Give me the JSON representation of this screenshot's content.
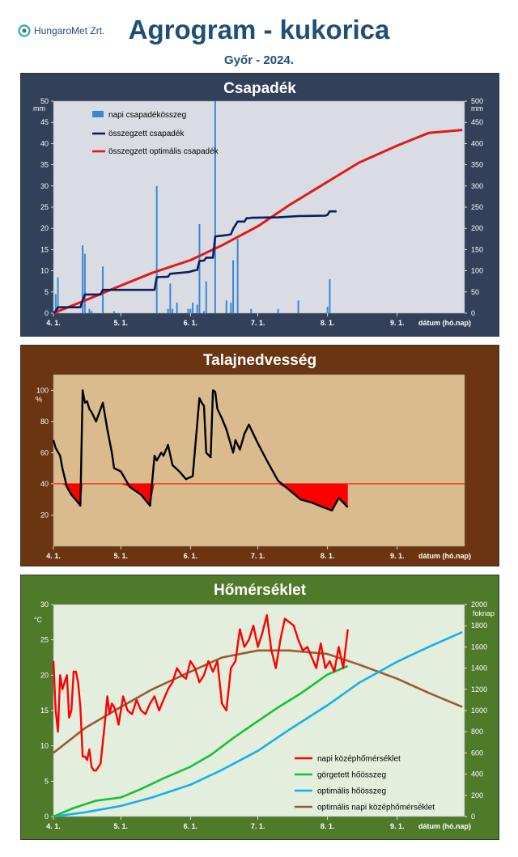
{
  "header": {
    "logo_text": "HungaroMet Zrt.",
    "title": "Agrogram - kukorica",
    "subtitle": "Győr - 2024."
  },
  "chart_data": [
    {
      "type": "bar+line",
      "title": "Csapadék",
      "left_unit": "mm",
      "right_unit": "mm",
      "x_date_labels": [
        "4. 1.",
        "5. 1.",
        "6. 1.",
        "7. 1.",
        "8. 1.",
        "9. 1."
      ],
      "xlabel": "dátum (hó.nap)",
      "ylim_left": [
        0,
        50
      ],
      "yticks_left": [
        0,
        5,
        10,
        15,
        20,
        25,
        30,
        35,
        40,
        45,
        50
      ],
      "ylim_right": [
        0,
        500
      ],
      "yticks_right": [
        0,
        50,
        100,
        150,
        200,
        250,
        300,
        350,
        400,
        450,
        500
      ],
      "legend": [
        "napi csapadékösszeg",
        "összegzett csapadék",
        "összegzett optimális csapadék"
      ],
      "series": [
        {
          "name": "napi csapadékösszeg",
          "kind": "bar",
          "axis": "left",
          "color": "#3b87d6",
          "x": [
            "04-02",
            "04-03",
            "04-14",
            "04-15",
            "04-17",
            "04-18",
            "04-23",
            "04-28",
            "05-17",
            "05-22",
            "05-23",
            "05-24",
            "05-26",
            "05-31",
            "06-01",
            "06-02",
            "06-04",
            "06-05",
            "06-07",
            "06-08",
            "06-12",
            "06-17",
            "06-19",
            "06-20",
            "06-22",
            "06-28",
            "07-10",
            "07-19",
            "08-01",
            "08-02"
          ],
          "values": [
            4.5,
            8.5,
            16,
            14,
            1,
            0.5,
            11,
            0.5,
            30,
            1,
            7,
            1,
            2.5,
            1,
            1,
            2.5,
            2,
            21,
            0.5,
            7.5,
            50,
            3,
            2.5,
            12.5,
            17.5,
            1,
            1,
            3,
            1.5,
            8
          ]
        },
        {
          "name": "összegzett csapadék",
          "kind": "line",
          "axis": "right",
          "color": "#0d1e5a",
          "x": [
            "04-01",
            "04-02",
            "04-03",
            "04-13",
            "04-14",
            "04-15",
            "04-22",
            "04-23",
            "05-16",
            "05-17",
            "05-22",
            "05-23",
            "05-31",
            "06-01",
            "06-02",
            "06-04",
            "06-05",
            "06-07",
            "06-08",
            "06-11",
            "06-12",
            "06-17",
            "06-19",
            "06-20",
            "06-22",
            "06-25",
            "06-26",
            "06-27",
            "06-28",
            "07-10",
            "07-19",
            "07-31",
            "08-01",
            "08-02",
            "08-05"
          ],
          "values": [
            0,
            5,
            14,
            14,
            30,
            44,
            44,
            55,
            55,
            85,
            86,
            93,
            97,
            98,
            100,
            102,
            123,
            124,
            131,
            131,
            181,
            184,
            186,
            199,
            216,
            216,
            224,
            224,
            225,
            226,
            229,
            230,
            232,
            240,
            240
          ]
        },
        {
          "name": "összegzett optimális csapadék",
          "kind": "line",
          "axis": "right",
          "color": "#e01a1a",
          "x": [
            "04-01",
            "04-15",
            "05-01",
            "05-15",
            "06-01",
            "06-15",
            "07-01",
            "07-15",
            "08-01",
            "08-15",
            "09-01",
            "09-15",
            "09-30"
          ],
          "values": [
            0,
            30,
            65,
            95,
            125,
            160,
            205,
            255,
            310,
            355,
            395,
            425,
            432
          ]
        }
      ]
    },
    {
      "type": "line",
      "title": "Talajnedvesség",
      "unit": "%",
      "x_date_labels": [
        "4. 1.",
        "5. 1.",
        "6. 1.",
        "7. 1.",
        "8. 1.",
        "9. 1."
      ],
      "xlabel": "dátum (hó.nap)",
      "ylim": [
        0,
        110
      ],
      "yticks": [
        20,
        40,
        60,
        80,
        100
      ],
      "threshold": 40,
      "series": [
        {
          "name": "talajnedvesség",
          "color": "#000000",
          "x": [
            "04-01",
            "04-02",
            "04-04",
            "04-05",
            "04-07",
            "04-09",
            "04-12",
            "04-13",
            "04-14",
            "04-15",
            "04-16",
            "04-17",
            "04-18",
            "04-20",
            "04-23",
            "04-25",
            "04-27",
            "04-28",
            "05-01",
            "05-05",
            "05-10",
            "05-14",
            "05-16",
            "05-17",
            "05-19",
            "05-20",
            "05-22",
            "05-24",
            "05-27",
            "05-30",
            "06-02",
            "06-05",
            "06-06",
            "06-07",
            "06-08",
            "06-10",
            "06-11",
            "06-12",
            "06-13",
            "06-15",
            "06-17",
            "06-18",
            "06-20",
            "06-21",
            "06-23",
            "06-25",
            "06-27",
            "07-01",
            "07-05",
            "07-10",
            "07-15",
            "07-20",
            "07-25",
            "07-30",
            "08-03",
            "08-06",
            "08-08",
            "08-10"
          ],
          "values": [
            68,
            63,
            58,
            50,
            38,
            33,
            28,
            26,
            100,
            92,
            93,
            88,
            86,
            80,
            92,
            75,
            60,
            50,
            48,
            38,
            33,
            26,
            58,
            55,
            60,
            58,
            65,
            52,
            48,
            43,
            45,
            95,
            92,
            90,
            60,
            57,
            100,
            99,
            88,
            82,
            75,
            70,
            60,
            68,
            62,
            72,
            78,
            66,
            55,
            42,
            36,
            30,
            28,
            25,
            23,
            31,
            28,
            25
          ]
        }
      ]
    },
    {
      "type": "line",
      "title": "Hőmérséklet",
      "left_unit": "°C",
      "right_unit": "foknap",
      "x_date_labels": [
        "4. 1.",
        "5. 1.",
        "6. 1.",
        "7. 1.",
        "8. 1.",
        "9. 1."
      ],
      "xlabel": "dátum (hó.nap)",
      "ylim_left": [
        0,
        30
      ],
      "yticks_left": [
        0,
        5,
        10,
        15,
        20,
        25,
        30
      ],
      "ylim_right": [
        0,
        2000
      ],
      "yticks_right": [
        0,
        200,
        400,
        600,
        800,
        1000,
        1200,
        1400,
        1600,
        1800,
        2000
      ],
      "legend": [
        "napi középhőmérséklet",
        "görgetett hőösszeg",
        "optimális hőösszeg",
        "optimális napi középhőmérséklet"
      ],
      "series": [
        {
          "name": "napi középhőmérséklet",
          "axis": "left",
          "color": "#ff0000",
          "x": [
            "04-01",
            "04-02",
            "04-03",
            "04-04",
            "04-05",
            "04-07",
            "04-08",
            "04-09",
            "04-10",
            "04-11",
            "04-12",
            "04-13",
            "04-14",
            "04-15",
            "04-16",
            "04-17",
            "04-18",
            "04-19",
            "04-20",
            "04-22",
            "04-24",
            "04-25",
            "04-26",
            "04-27",
            "04-28",
            "04-29",
            "04-30",
            "05-02",
            "05-04",
            "05-06",
            "05-08",
            "05-10",
            "05-12",
            "05-14",
            "05-16",
            "05-18",
            "05-20",
            "05-22",
            "05-24",
            "05-26",
            "05-28",
            "05-30",
            "06-01",
            "06-03",
            "06-05",
            "06-07",
            "06-09",
            "06-11",
            "06-13",
            "06-15",
            "06-17",
            "06-19",
            "06-21",
            "06-23",
            "06-25",
            "06-27",
            "06-29",
            "07-01",
            "07-03",
            "07-05",
            "07-07",
            "07-09",
            "07-11",
            "07-13",
            "07-15",
            "07-17",
            "07-19",
            "07-21",
            "07-23",
            "07-25",
            "07-27",
            "07-29",
            "07-31",
            "08-02",
            "08-04",
            "08-06",
            "08-08",
            "08-10"
          ],
          "values": [
            22,
            15,
            12,
            20,
            18,
            20,
            14,
            15,
            20.5,
            20.5,
            19,
            15.5,
            8.5,
            8.5,
            8,
            9.5,
            7,
            6.5,
            6.5,
            7.5,
            13.5,
            17,
            14.5,
            16,
            15.5,
            14.5,
            13,
            17,
            15,
            14.5,
            16.5,
            15,
            14.5,
            16,
            17,
            15,
            16.5,
            18,
            19,
            21,
            20,
            19.5,
            22,
            21,
            19,
            20,
            22,
            20.5,
            22,
            16,
            15,
            21,
            22,
            26.5,
            24,
            25,
            27,
            24,
            26,
            28.5,
            23.5,
            21,
            25,
            28,
            27.5,
            27,
            25,
            23.5,
            24,
            22.5,
            21,
            24.5,
            21,
            22,
            20.5,
            24,
            21,
            26.5
          ]
        },
        {
          "name": "görgetett hőösszeg",
          "axis": "right",
          "color": "#19c037",
          "x": [
            "04-01",
            "04-10",
            "04-20",
            "05-01",
            "05-10",
            "05-20",
            "06-01",
            "06-10",
            "06-20",
            "07-01",
            "07-10",
            "07-20",
            "08-01",
            "08-10"
          ],
          "values": [
            0,
            80,
            150,
            180,
            260,
            360,
            470,
            580,
            740,
            900,
            1030,
            1160,
            1340,
            1420
          ]
        },
        {
          "name": "optimális hőösszeg",
          "axis": "right",
          "color": "#15b0ea",
          "x": [
            "04-01",
            "04-15",
            "05-01",
            "05-15",
            "06-01",
            "06-15",
            "07-01",
            "07-15",
            "08-01",
            "08-15",
            "09-01",
            "09-15",
            "09-30"
          ],
          "values": [
            0,
            40,
            100,
            180,
            300,
            440,
            620,
            820,
            1050,
            1260,
            1460,
            1600,
            1740
          ]
        },
        {
          "name": "optimális napi középhőmérséklet",
          "axis": "left",
          "color": "#9a5a32",
          "x": [
            "04-01",
            "04-15",
            "05-01",
            "05-15",
            "06-01",
            "06-15",
            "07-01",
            "07-15",
            "08-01",
            "08-15",
            "09-01",
            "09-15",
            "09-30"
          ],
          "values": [
            9,
            12.5,
            15.5,
            18,
            20.5,
            22.5,
            23.5,
            23.5,
            23,
            21.5,
            19.5,
            17.5,
            15.5
          ]
        }
      ]
    }
  ],
  "colors": {
    "panel1_bg": "#32405a",
    "panel1_plot": "#d9dce2",
    "panel2_bg": "#6a3510",
    "panel2_plot": "#d9bb8e",
    "panel3_bg": "#4f7a2a",
    "panel3_plot": "#e3eedc"
  }
}
